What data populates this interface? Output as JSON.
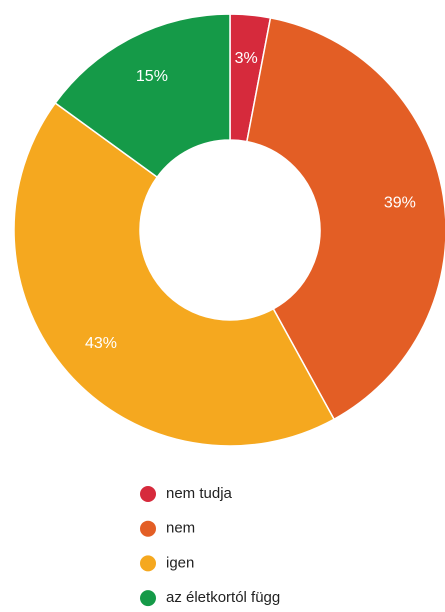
{
  "chart_data": {
    "type": "pie",
    "categories": [
      "nem tudja",
      "nem",
      "igen",
      "az életkortól függ"
    ],
    "values": [
      3,
      39,
      43,
      15
    ],
    "value_labels": [
      "3%",
      "39%",
      "43%",
      "15%"
    ],
    "colors": [
      "#d62a3c",
      "#e35e25",
      "#f5a81f",
      "#159a48"
    ],
    "donut": true,
    "legend": "bottom"
  }
}
